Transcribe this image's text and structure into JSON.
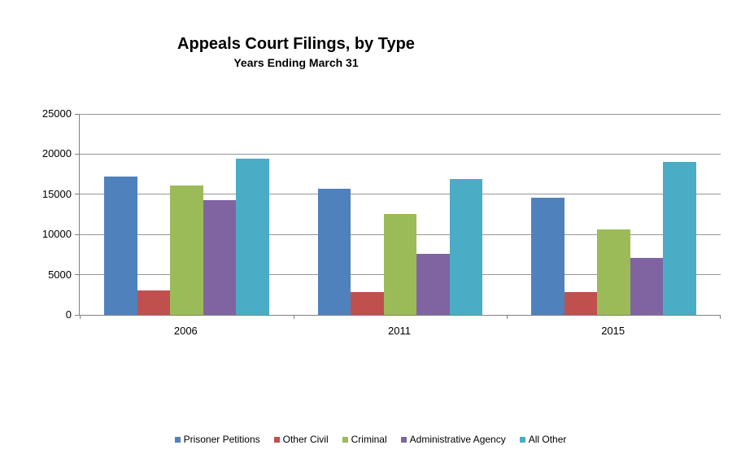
{
  "chart_data": {
    "type": "bar",
    "title": "Appeals Court Filings, by Type",
    "subtitle": "Years Ending March 31",
    "categories": [
      "2006",
      "2011",
      "2015"
    ],
    "series": [
      {
        "name": "Prisoner Petitions",
        "color": "#4F81BD",
        "values": [
          17200,
          15700,
          14550
        ]
      },
      {
        "name": "Other Civil",
        "color": "#C0504D",
        "values": [
          3050,
          2850,
          2800
        ]
      },
      {
        "name": "Criminal",
        "color": "#9BBB59",
        "values": [
          16100,
          12550,
          10650
        ]
      },
      {
        "name": "Administrative Agency",
        "color": "#8064A2",
        "values": [
          14250,
          7600,
          7050
        ]
      },
      {
        "name": "All Other",
        "color": "#4BACC6",
        "values": [
          19450,
          16900,
          19050
        ]
      }
    ],
    "xlabel": "",
    "ylabel": "",
    "ylim": [
      0,
      25000
    ],
    "ytick_step": 5000,
    "yticks": [
      "0",
      "5000",
      "10000",
      "15000",
      "20000",
      "25000"
    ],
    "grid": true,
    "legend_position": "bottom"
  },
  "style_colors": {
    "background": "#FFFFFF",
    "gridline": "#969696",
    "axis": "#808080",
    "text": "#000000"
  }
}
